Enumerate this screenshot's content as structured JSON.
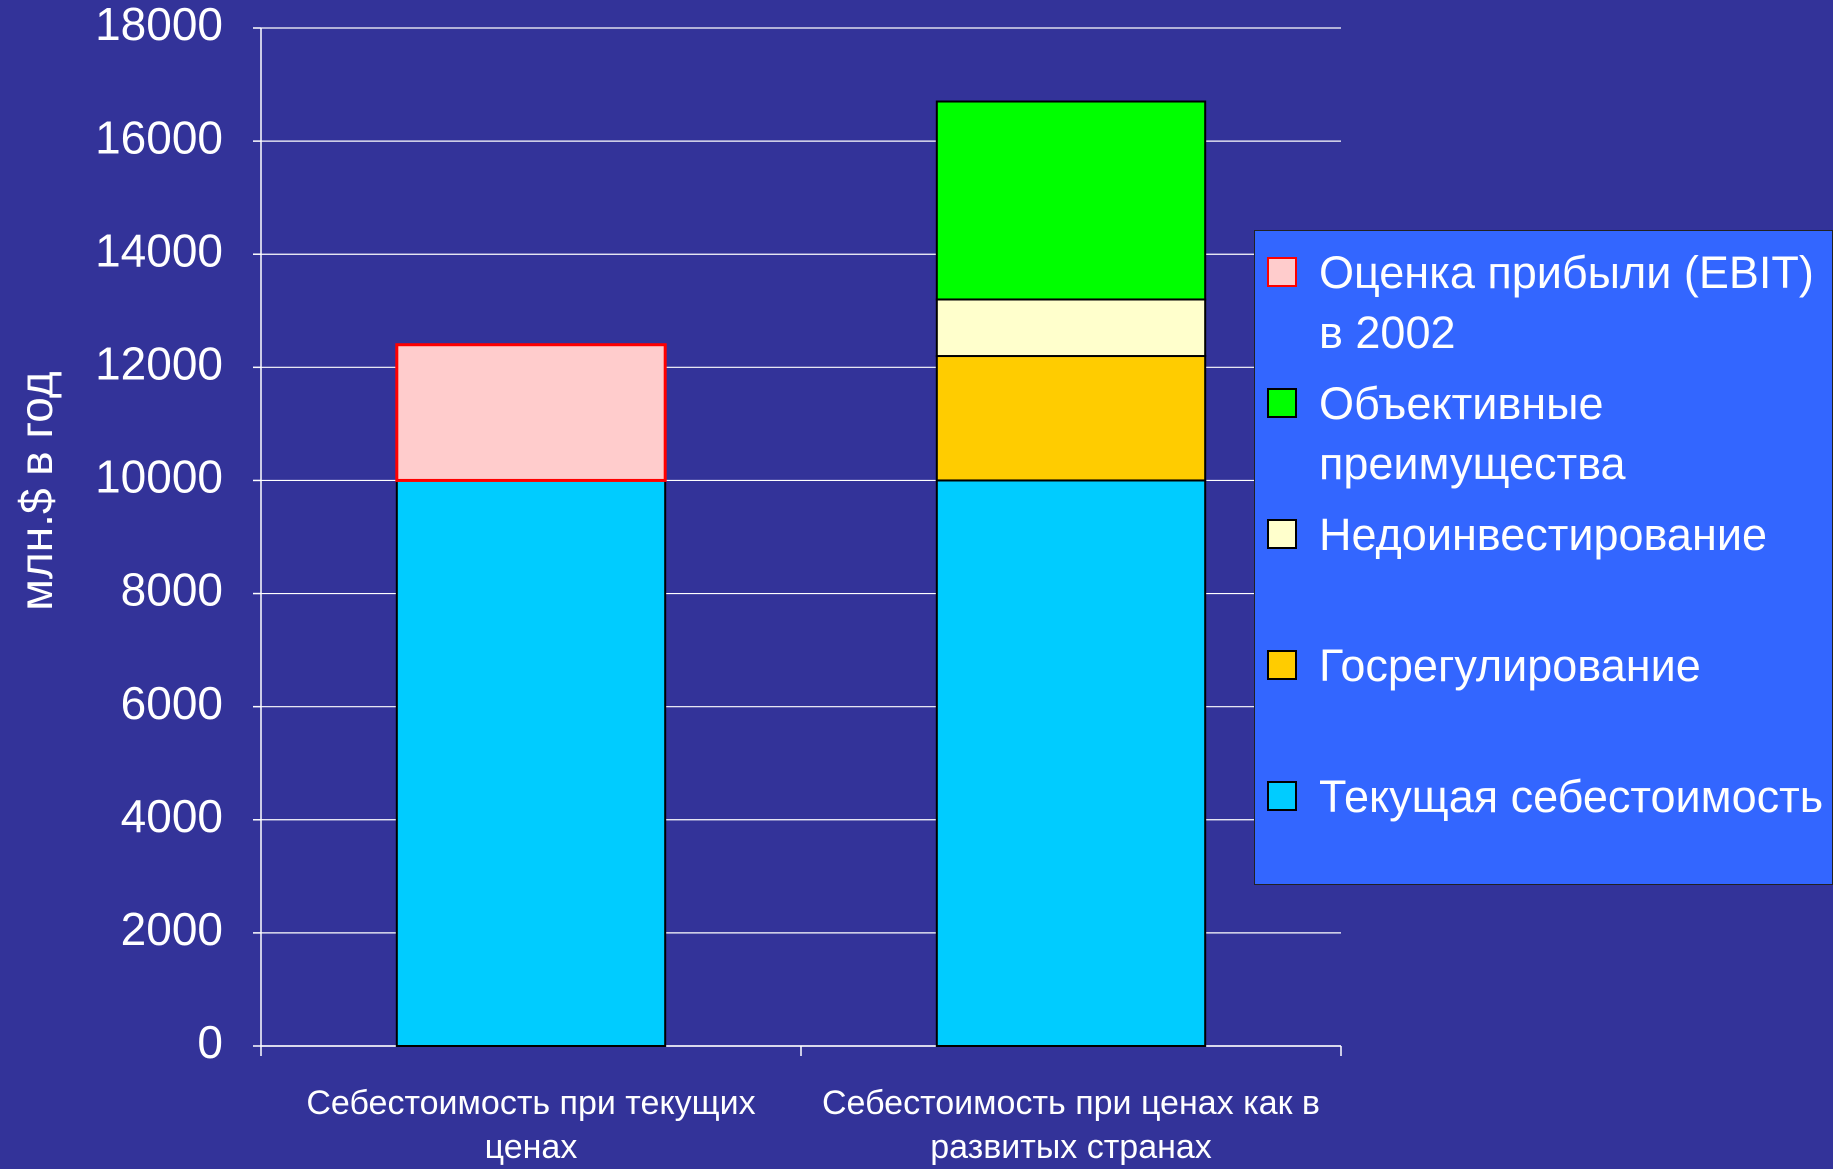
{
  "chart_data": {
    "type": "bar",
    "stacked": true,
    "ylabel": "млн.$ в год",
    "categories": [
      "Себестоимость при текущих ценах",
      "Себестоимость при ценах как в развитых странах"
    ],
    "series": [
      {
        "name": "Текущая себестоимость",
        "color": "#00ccff",
        "values": [
          10000,
          10000
        ]
      },
      {
        "name": "Госрегулирование",
        "color": "#ffcc00",
        "values": [
          null,
          2200
        ]
      },
      {
        "name": "Недоинвестирование",
        "color": "#ffffcc",
        "values": [
          null,
          1000
        ]
      },
      {
        "name": "Объективные преимущества",
        "color": "#00ff00",
        "values": [
          null,
          3500
        ]
      },
      {
        "name": "Оценка прибыли (EBIT) в 2002",
        "color": "#ffcccc",
        "border": "#ff0000",
        "values": [
          2400,
          null
        ]
      }
    ],
    "ylim": [
      0,
      18000
    ],
    "yticks": [
      0,
      2000,
      4000,
      6000,
      8000,
      10000,
      12000,
      14000,
      16000,
      18000
    ],
    "grid": true,
    "legend": "right"
  }
}
